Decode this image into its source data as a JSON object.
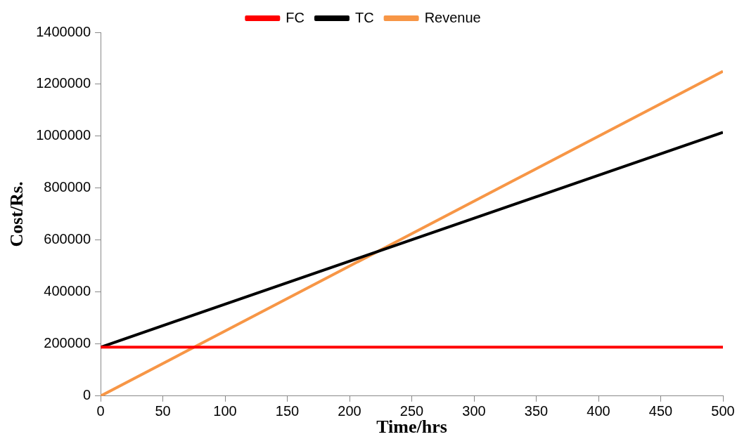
{
  "chart_data": {
    "type": "line",
    "xlabel": "Time/hrs",
    "ylabel": "Cost/Rs.",
    "x": [
      0,
      500
    ],
    "series": [
      {
        "name": "FC",
        "color": "#ff0000",
        "values": [
          188000,
          188000
        ]
      },
      {
        "name": "TC",
        "color": "#000000",
        "values": [
          188000,
          1015000
        ]
      },
      {
        "name": "Revenue",
        "color": "#f79646",
        "values": [
          0,
          1250000
        ]
      }
    ],
    "xlim": [
      0,
      500
    ],
    "xticks": [
      0,
      50,
      100,
      150,
      200,
      250,
      300,
      350,
      400,
      450,
      500
    ],
    "ylim": [
      0,
      1400000
    ],
    "yticks": [
      0,
      200000,
      400000,
      600000,
      800000,
      1000000,
      1200000,
      1400000
    ],
    "grid": false,
    "legend": "top",
    "marker": "none",
    "line_style": "solid"
  }
}
